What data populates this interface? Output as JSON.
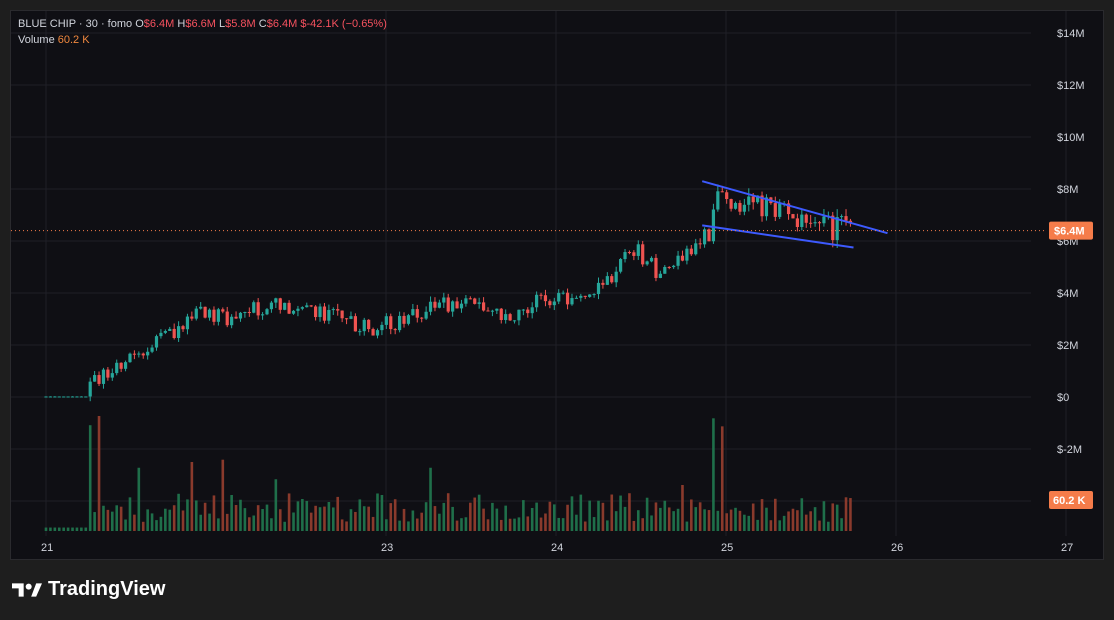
{
  "legend": {
    "symbol": "BLUE CHIP · 30 · fomo",
    "o_label": "O",
    "o_value": "$6.4M",
    "h_label": "H",
    "h_value": "$6.6M",
    "l_label": "L",
    "l_value": "$5.8M",
    "c_label": "C",
    "c_value": "$6.4M",
    "change": "$-42.1K (−0.65%)",
    "volume_label": "Volume",
    "volume_value": "60.2 K"
  },
  "branding": {
    "name": "TradingView"
  },
  "colors": {
    "up": "#26a69a",
    "down": "#ef5350",
    "trend": "#3d5afe",
    "price_tag": "#f57c4a",
    "grid": "#1f1f26"
  },
  "chart_data": {
    "type": "candlestick",
    "y_ticks": [
      "$14M",
      "$12M",
      "$10M",
      "$8M",
      "$6M",
      "$4M",
      "$2M",
      "$0",
      "$-2M"
    ],
    "y_tick_values": [
      14,
      12,
      10,
      8,
      6,
      4,
      2,
      0,
      -2
    ],
    "ylim": [
      -2,
      14
    ],
    "y_unit": "$M",
    "x_ticks": [
      "21",
      "23",
      "24",
      "25",
      "26",
      "27"
    ],
    "x_tick_days": [
      21,
      23,
      24,
      25,
      26,
      27
    ],
    "xlim": [
      20.95,
      27.95
    ],
    "price_tag": {
      "value": 6.4,
      "label": "$6.4M"
    },
    "volume_tag": {
      "label": "60.2 K"
    },
    "trend_lines": [
      {
        "from": [
          24.86,
          8.3
        ],
        "to": [
          25.95,
          6.3
        ]
      },
      {
        "from": [
          24.86,
          6.6
        ],
        "to": [
          25.75,
          5.75
        ]
      }
    ],
    "anchors": [
      [
        21.0,
        0.0
      ],
      [
        21.2,
        0.05
      ],
      [
        21.3,
        0.7
      ],
      [
        21.5,
        1.5
      ],
      [
        21.7,
        2.3
      ],
      [
        21.9,
        3.2
      ],
      [
        22.1,
        3.0
      ],
      [
        22.3,
        3.6
      ],
      [
        22.5,
        3.4
      ],
      [
        22.7,
        3.1
      ],
      [
        22.9,
        2.6
      ],
      [
        23.1,
        3.0
      ],
      [
        23.3,
        3.4
      ],
      [
        23.5,
        3.8
      ],
      [
        23.7,
        3.1
      ],
      [
        23.9,
        3.8
      ],
      [
        24.1,
        3.7
      ],
      [
        24.3,
        4.5
      ],
      [
        24.45,
        5.8
      ],
      [
        24.6,
        4.8
      ],
      [
        24.75,
        5.4
      ],
      [
        24.9,
        6.3
      ],
      [
        24.96,
        7.8
      ],
      [
        25.1,
        7.5
      ],
      [
        25.3,
        7.3
      ],
      [
        25.5,
        6.6
      ],
      [
        25.75,
        6.4
      ]
    ],
    "candle_step_days": 0.026,
    "volume_ylim": [
      0,
      1
    ],
    "volume_spikes": [
      {
        "day": 21.27,
        "value": 0.92
      },
      {
        "day": 21.3,
        "value": 1.0
      },
      {
        "day": 21.55,
        "value": 0.55
      },
      {
        "day": 21.85,
        "value": 0.6
      },
      {
        "day": 22.05,
        "value": 0.62
      },
      {
        "day": 22.35,
        "value": 0.45
      },
      {
        "day": 23.25,
        "value": 0.55
      },
      {
        "day": 24.75,
        "value": 0.4
      },
      {
        "day": 24.93,
        "value": 0.98
      },
      {
        "day": 24.97,
        "value": 0.91
      }
    ]
  }
}
